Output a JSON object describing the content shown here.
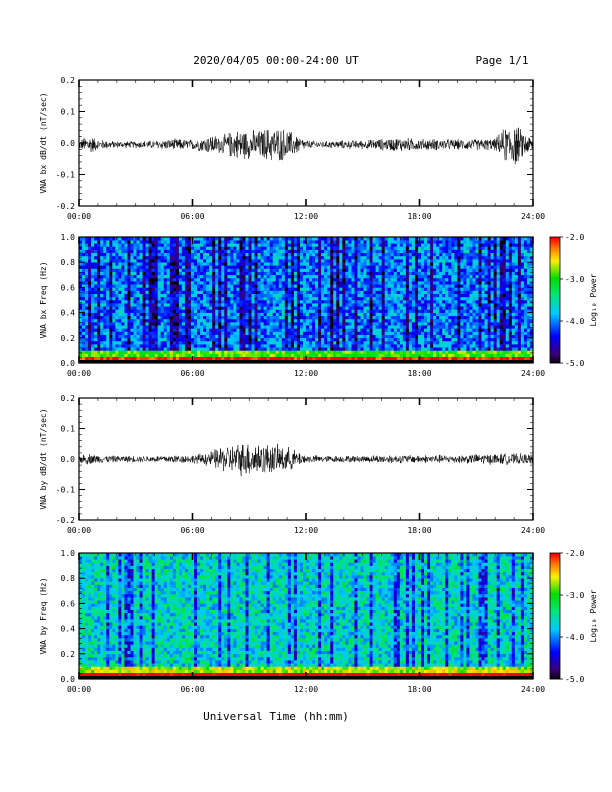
{
  "header": {
    "title": "2020/04/05  00:00-24:00 UT",
    "page_label": "Page 1/1"
  },
  "footer": {
    "xlabel": "Universal Time (hh:mm)"
  },
  "colors": {
    "trace": "#000000",
    "axis": "#000000",
    "background": "#ffffff"
  },
  "chart_data": [
    {
      "type": "line",
      "title": "",
      "ylabel": "VNA bx dB/dt (nT/sec)",
      "xlabel": "",
      "x_ticks": [
        "00:00",
        "06:00",
        "12:00",
        "18:00",
        "24:00"
      ],
      "xlim_hours": [
        0,
        24
      ],
      "ylim": [
        -0.2,
        0.2
      ],
      "y_ticks": [
        "0.2",
        "0.1",
        "0.0",
        "-0.1",
        "-0.2"
      ],
      "series": [
        {
          "x_hours": [
            0,
            0.5,
            1,
            2,
            3,
            4,
            5,
            6,
            6.5,
            7,
            7.5,
            8,
            8.5,
            9,
            9.5,
            10,
            10.5,
            11,
            11.5,
            12,
            13,
            14,
            15,
            16,
            17,
            18,
            19,
            20,
            21,
            22,
            22.5,
            23,
            23.5,
            24
          ],
          "amplitude": [
            0.015,
            0.035,
            0.018,
            0.012,
            0.012,
            0.015,
            0.02,
            0.018,
            0.025,
            0.035,
            0.03,
            0.045,
            0.055,
            0.05,
            0.05,
            0.06,
            0.06,
            0.055,
            0.035,
            0.015,
            0.012,
            0.015,
            0.015,
            0.02,
            0.025,
            0.02,
            0.02,
            0.018,
            0.02,
            0.02,
            0.06,
            0.08,
            0.045,
            0.025
          ],
          "offset": -0.005
        }
      ]
    },
    {
      "type": "heatmap",
      "title": "",
      "ylabel": "VNA bx Freq (Hz)",
      "xlabel": "",
      "x_ticks": [
        "00:00",
        "06:00",
        "12:00",
        "18:00",
        "24:00"
      ],
      "xlim_hours": [
        0,
        24
      ],
      "ylim": [
        0.0,
        1.0
      ],
      "y_ticks": [
        "1.0",
        "0.8",
        "0.6",
        "0.4",
        "0.2",
        "0.0"
      ],
      "colorbar": {
        "label": "Log₁₀ Power",
        "range": [
          -5.0,
          -2.0
        ],
        "ticks": [
          "-2.0",
          "-3.0",
          "-4.0",
          "-5.0"
        ]
      },
      "typical_log_power": -4.0,
      "low_frequency_log_power": -3.0
    },
    {
      "type": "line",
      "title": "",
      "ylabel": "VNA by dB/dt (nT/sec)",
      "xlabel": "",
      "x_ticks": [
        "00:00",
        "06:00",
        "12:00",
        "18:00",
        "24:00"
      ],
      "xlim_hours": [
        0,
        24
      ],
      "ylim": [
        -0.2,
        0.2
      ],
      "y_ticks": [
        "0.2",
        "0.1",
        "0.0",
        "-0.1",
        "-0.2"
      ],
      "series": [
        {
          "x_hours": [
            0,
            0.5,
            1,
            2,
            3,
            4,
            5,
            6,
            6.5,
            7,
            7.5,
            8,
            8.5,
            9,
            9.5,
            10,
            10.5,
            11,
            11.5,
            12,
            13,
            14,
            15,
            16,
            17,
            18,
            19,
            20,
            21,
            22,
            23,
            24
          ],
          "amplitude": [
            0.015,
            0.02,
            0.015,
            0.012,
            0.012,
            0.012,
            0.015,
            0.015,
            0.02,
            0.03,
            0.045,
            0.05,
            0.06,
            0.065,
            0.06,
            0.055,
            0.05,
            0.045,
            0.03,
            0.015,
            0.012,
            0.012,
            0.012,
            0.015,
            0.015,
            0.015,
            0.015,
            0.015,
            0.018,
            0.02,
            0.02,
            0.018
          ],
          "offset": 0.0
        }
      ]
    },
    {
      "type": "heatmap",
      "title": "",
      "ylabel": "VNA by Freq (Hz)",
      "xlabel": "",
      "x_ticks": [
        "00:00",
        "06:00",
        "12:00",
        "18:00",
        "24:00"
      ],
      "xlim_hours": [
        0,
        24
      ],
      "ylim": [
        0.0,
        1.0
      ],
      "y_ticks": [
        "1.0",
        "0.8",
        "0.6",
        "0.4",
        "0.2",
        "0.0"
      ],
      "colorbar": {
        "label": "Log₁₀ Power",
        "range": [
          -5.0,
          -2.0
        ],
        "ticks": [
          "-2.0",
          "-3.0",
          "-4.0",
          "-5.0"
        ]
      },
      "typical_log_power": -3.6,
      "low_frequency_log_power": -2.8
    }
  ]
}
